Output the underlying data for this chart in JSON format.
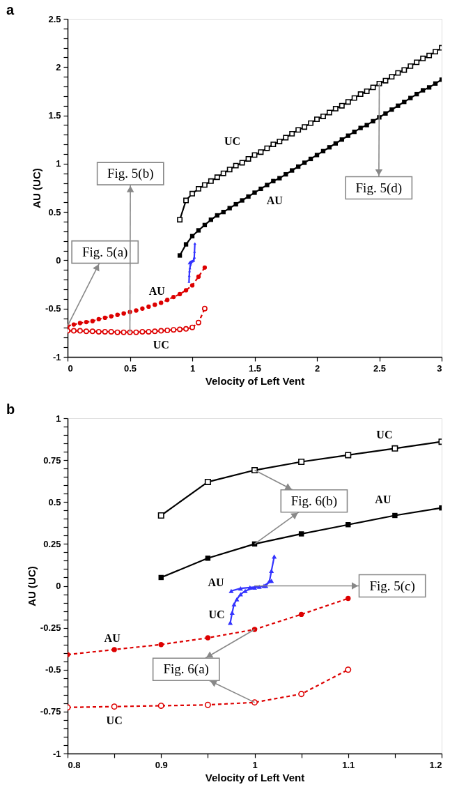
{
  "chart_data": [
    {
      "type": "line",
      "title": "a",
      "xlabel": "Velocity of Left Vent",
      "ylabel": "AU (UC)",
      "xlim": [
        0,
        3
      ],
      "ylim": [
        -1,
        2.5
      ],
      "xticks": [
        0,
        0.5,
        1,
        1.5,
        2,
        2.5,
        3
      ],
      "yticks": [
        -1,
        {
          "value": -0.9,
          "label": null
        },
        {
          "value": -0.8,
          "label": null
        },
        {
          "value": -0.7,
          "label": null
        },
        {
          "value": -0.6,
          "label": null
        },
        -0.5,
        {
          "value": -0.4,
          "label": null
        },
        {
          "value": -0.3,
          "label": null
        },
        {
          "value": -0.2,
          "label": null
        },
        {
          "value": -0.1,
          "label": null
        },
        0,
        {
          "value": 0.1,
          "label": null
        },
        {
          "value": 0.2,
          "label": null
        },
        {
          "value": 0.3,
          "label": null
        },
        {
          "value": 0.4,
          "label": null
        },
        0.5,
        {
          "value": 0.6,
          "label": null
        },
        {
          "value": 0.7,
          "label": null
        },
        {
          "value": 0.8,
          "label": null
        },
        {
          "value": 0.9,
          "label": null
        },
        1,
        {
          "value": 1.1,
          "label": null
        },
        {
          "value": 1.2,
          "label": null
        },
        {
          "value": 1.3,
          "label": null
        },
        {
          "value": 1.4,
          "label": null
        },
        1.5,
        {
          "value": 1.6,
          "label": null
        },
        {
          "value": 1.7,
          "label": null
        },
        {
          "value": 1.8,
          "label": null
        },
        {
          "value": 1.9,
          "label": null
        },
        2,
        {
          "value": 2.1,
          "label": null
        },
        {
          "value": 2.2,
          "label": null
        },
        {
          "value": 2.3,
          "label": null
        },
        {
          "value": 2.4,
          "label": null
        },
        2.5
      ],
      "series": [
        {
          "name": "UC",
          "color": "#000000",
          "marker": "square",
          "line_style": "solid",
          "x": [
            0.9,
            0.95,
            1.0,
            1.05,
            1.1,
            1.15,
            1.2,
            1.25,
            1.3,
            1.35,
            1.4,
            1.45,
            1.5,
            1.55,
            1.6,
            1.65,
            1.7,
            1.75,
            1.8,
            1.85,
            1.9,
            1.95,
            2.0,
            2.05,
            2.1,
            2.15,
            2.2,
            2.25,
            2.3,
            2.35,
            2.4,
            2.45,
            2.5,
            2.55,
            2.6,
            2.65,
            2.7,
            2.75,
            2.8,
            2.85,
            2.9,
            2.95,
            3.0
          ],
          "values": [
            0.42,
            0.62,
            0.69,
            0.74,
            0.78,
            0.82,
            0.86,
            0.9,
            0.94,
            0.98,
            1.01,
            1.05,
            1.09,
            1.12,
            1.16,
            1.2,
            1.23,
            1.27,
            1.31,
            1.35,
            1.38,
            1.42,
            1.46,
            1.49,
            1.53,
            1.57,
            1.6,
            1.64,
            1.68,
            1.72,
            1.75,
            1.79,
            1.83,
            1.86,
            1.9,
            1.94,
            1.97,
            2.01,
            2.05,
            2.09,
            2.12,
            2.16,
            2.2
          ]
        },
        {
          "name": "AU",
          "color": "#000000",
          "marker": "square",
          "line_style": "solid",
          "x": [
            0.9,
            0.95,
            1.0,
            1.05,
            1.1,
            1.15,
            1.2,
            1.25,
            1.3,
            1.35,
            1.4,
            1.45,
            1.5,
            1.55,
            1.6,
            1.65,
            1.7,
            1.75,
            1.8,
            1.85,
            1.9,
            1.95,
            2.0,
            2.05,
            2.1,
            2.15,
            2.2,
            2.25,
            2.3,
            2.35,
            2.4,
            2.45,
            2.5,
            2.55,
            2.6,
            2.65,
            2.7,
            2.75,
            2.8,
            2.85,
            2.9,
            2.95,
            3.0
          ],
          "values": [
            0.05,
            0.165,
            0.25,
            0.31,
            0.365,
            0.42,
            0.465,
            0.5,
            0.54,
            0.58,
            0.62,
            0.66,
            0.7,
            0.74,
            0.78,
            0.82,
            0.85,
            0.89,
            0.93,
            0.97,
            1.01,
            1.05,
            1.09,
            1.13,
            1.17,
            1.21,
            1.25,
            1.29,
            1.33,
            1.37,
            1.4,
            1.44,
            1.48,
            1.52,
            1.56,
            1.6,
            1.64,
            1.68,
            1.72,
            1.76,
            1.79,
            1.83,
            1.87
          ]
        },
        {
          "name": "AU",
          "color": "#dd0000",
          "marker": "circle",
          "line_style": "dashed",
          "x": [
            0,
            0.05,
            0.1,
            0.15,
            0.2,
            0.25,
            0.3,
            0.35,
            0.4,
            0.45,
            0.5,
            0.55,
            0.6,
            0.65,
            0.7,
            0.75,
            0.8,
            0.85,
            0.9,
            0.95,
            1.0,
            1.05,
            1.1
          ],
          "values": [
            -0.68,
            -0.665,
            -0.65,
            -0.64,
            -0.63,
            -0.61,
            -0.595,
            -0.58,
            -0.565,
            -0.55,
            -0.535,
            -0.52,
            -0.5,
            -0.48,
            -0.46,
            -0.44,
            -0.41,
            -0.38,
            -0.35,
            -0.31,
            -0.26,
            -0.17,
            -0.075
          ]
        },
        {
          "name": "UC",
          "color": "#dd0000",
          "marker": "circle",
          "line_style": "dashed",
          "x": [
            0,
            0.05,
            0.1,
            0.15,
            0.2,
            0.25,
            0.3,
            0.35,
            0.4,
            0.45,
            0.5,
            0.55,
            0.6,
            0.65,
            0.7,
            0.75,
            0.8,
            0.85,
            0.9,
            0.95,
            1.0,
            1.05,
            1.1
          ],
          "values": [
            -0.73,
            -0.73,
            -0.73,
            -0.735,
            -0.735,
            -0.74,
            -0.74,
            -0.74,
            -0.745,
            -0.745,
            -0.745,
            -0.745,
            -0.74,
            -0.74,
            -0.735,
            -0.73,
            -0.725,
            -0.72,
            -0.715,
            -0.71,
            -0.695,
            -0.645,
            -0.5
          ]
        },
        {
          "color": "#3333ff",
          "marker": "triangle",
          "line_style": "solid",
          "x": [
            0.974,
            0.976,
            0.978,
            0.981,
            0.985,
            0.99,
            1.0,
            1.01,
            1.018
          ],
          "values": [
            -0.22,
            -0.16,
            -0.11,
            -0.08,
            -0.05,
            -0.03,
            -0.01,
            0.0,
            0.03
          ]
        },
        {
          "color": "#3333ff",
          "marker": "triangle",
          "line_style": "solid",
          "x": [
            0.975,
            0.985,
            0.995,
            1.005,
            1.012,
            1.016,
            1.018,
            1.021
          ],
          "values": [
            -0.03,
            -0.015,
            -0.01,
            -0.005,
            0.0,
            0.03,
            0.09,
            0.175
          ]
        }
      ],
      "annotations": [
        {
          "text": "Fig. 5(a)",
          "x": 0,
          "y": -0.68
        },
        {
          "text": "Fig. 5(b)",
          "x": 0.5,
          "y": -0.745
        },
        {
          "text": "Fig. 5(d)",
          "x": 2.5,
          "y": 1.83
        }
      ]
    },
    {
      "type": "line",
      "title": "b",
      "xlabel": "Velocity of Left Vent",
      "ylabel": "AU (UC)",
      "xlim": [
        0.8,
        1.2
      ],
      "ylim": [
        -1,
        1
      ],
      "xticks": [
        0.8,
        {
          "value": 0.85,
          "label": null
        },
        0.9,
        {
          "value": 0.95,
          "label": null
        },
        1,
        {
          "value": 1.05,
          "label": null
        },
        1.1,
        {
          "value": 1.15,
          "label": null
        },
        1.2
      ],
      "yticks": [
        -1,
        {
          "value": -0.95,
          "label": null
        },
        {
          "value": -0.9,
          "label": null
        },
        {
          "value": -0.85,
          "label": null
        },
        {
          "value": -0.8,
          "label": null
        },
        -0.75,
        {
          "value": -0.7,
          "label": null
        },
        {
          "value": -0.65,
          "label": null
        },
        {
          "value": -0.6,
          "label": null
        },
        {
          "value": -0.55,
          "label": null
        },
        -0.5,
        {
          "value": -0.45,
          "label": null
        },
        {
          "value": -0.4,
          "label": null
        },
        {
          "value": -0.35,
          "label": null
        },
        {
          "value": -0.3,
          "label": null
        },
        -0.25,
        {
          "value": -0.2,
          "label": null
        },
        {
          "value": -0.15,
          "label": null
        },
        {
          "value": -0.1,
          "label": null
        },
        {
          "value": -0.05,
          "label": null
        },
        0,
        {
          "value": 0.05,
          "label": null
        },
        {
          "value": 0.1,
          "label": null
        },
        {
          "value": 0.15,
          "label": null
        },
        {
          "value": 0.2,
          "label": null
        },
        0.25,
        {
          "value": 0.3,
          "label": null
        },
        {
          "value": 0.35,
          "label": null
        },
        {
          "value": 0.4,
          "label": null
        },
        {
          "value": 0.45,
          "label": null
        },
        0.5,
        {
          "value": 0.55,
          "label": null
        },
        {
          "value": 0.6,
          "label": null
        },
        {
          "value": 0.65,
          "label": null
        },
        {
          "value": 0.7,
          "label": null
        },
        0.75,
        {
          "value": 0.8,
          "label": null
        },
        {
          "value": 0.85,
          "label": null
        },
        {
          "value": 0.9,
          "label": null
        },
        {
          "value": 0.95,
          "label": null
        },
        1
      ],
      "series": [
        {
          "name": "UC",
          "color": "#000000",
          "marker": "square",
          "line_style": "solid",
          "x": [
            0.9,
            0.95,
            1.0,
            1.05,
            1.1,
            1.15,
            1.2
          ],
          "values": [
            0.42,
            0.62,
            0.69,
            0.74,
            0.78,
            0.82,
            0.86
          ]
        },
        {
          "name": "AU",
          "color": "#000000",
          "marker": "square",
          "line_style": "solid",
          "x": [
            0.9,
            0.95,
            1.0,
            1.05,
            1.1,
            1.15,
            1.2
          ],
          "values": [
            0.05,
            0.165,
            0.25,
            0.31,
            0.365,
            0.42,
            0.465
          ]
        },
        {
          "name": "AU",
          "color": "#dd0000",
          "marker": "circle",
          "line_style": "dashed",
          "x": [
            0.8,
            0.85,
            0.9,
            0.95,
            1.0,
            1.05,
            1.1
          ],
          "values": [
            -0.41,
            -0.38,
            -0.35,
            -0.31,
            -0.26,
            -0.17,
            -0.075
          ]
        },
        {
          "name": "UC",
          "color": "#dd0000",
          "marker": "circle",
          "line_style": "dashed",
          "x": [
            0.8,
            0.85,
            0.9,
            0.95,
            1.0,
            1.05,
            1.1
          ],
          "values": [
            -0.725,
            -0.72,
            -0.715,
            -0.71,
            -0.695,
            -0.645,
            -0.5
          ]
        },
        {
          "name": "UC",
          "color": "#3333ff",
          "marker": "triangle",
          "line_style": "solid",
          "x": [
            0.974,
            0.976,
            0.978,
            0.981,
            0.985,
            0.99,
            1.0,
            1.01,
            1.018
          ],
          "values": [
            -0.22,
            -0.16,
            -0.11,
            -0.08,
            -0.05,
            -0.03,
            -0.01,
            0.0,
            0.03
          ]
        },
        {
          "name": "AU",
          "color": "#3333ff",
          "marker": "triangle",
          "line_style": "solid",
          "x": [
            0.975,
            0.985,
            0.995,
            1.005,
            1.012,
            1.016,
            1.018,
            1.021
          ],
          "values": [
            -0.03,
            -0.015,
            -0.01,
            -0.005,
            0.0,
            0.03,
            0.09,
            0.175
          ]
        }
      ],
      "annotations": [
        {
          "text": "Fig. 6(b)",
          "x": 1.0,
          "y": 0.69
        },
        {
          "text": "Fig. 5(c)",
          "x": 1.0,
          "y": 0.0
        },
        {
          "text": "Fig. 6(a)",
          "x": 1.0,
          "y": -0.26
        }
      ]
    }
  ]
}
